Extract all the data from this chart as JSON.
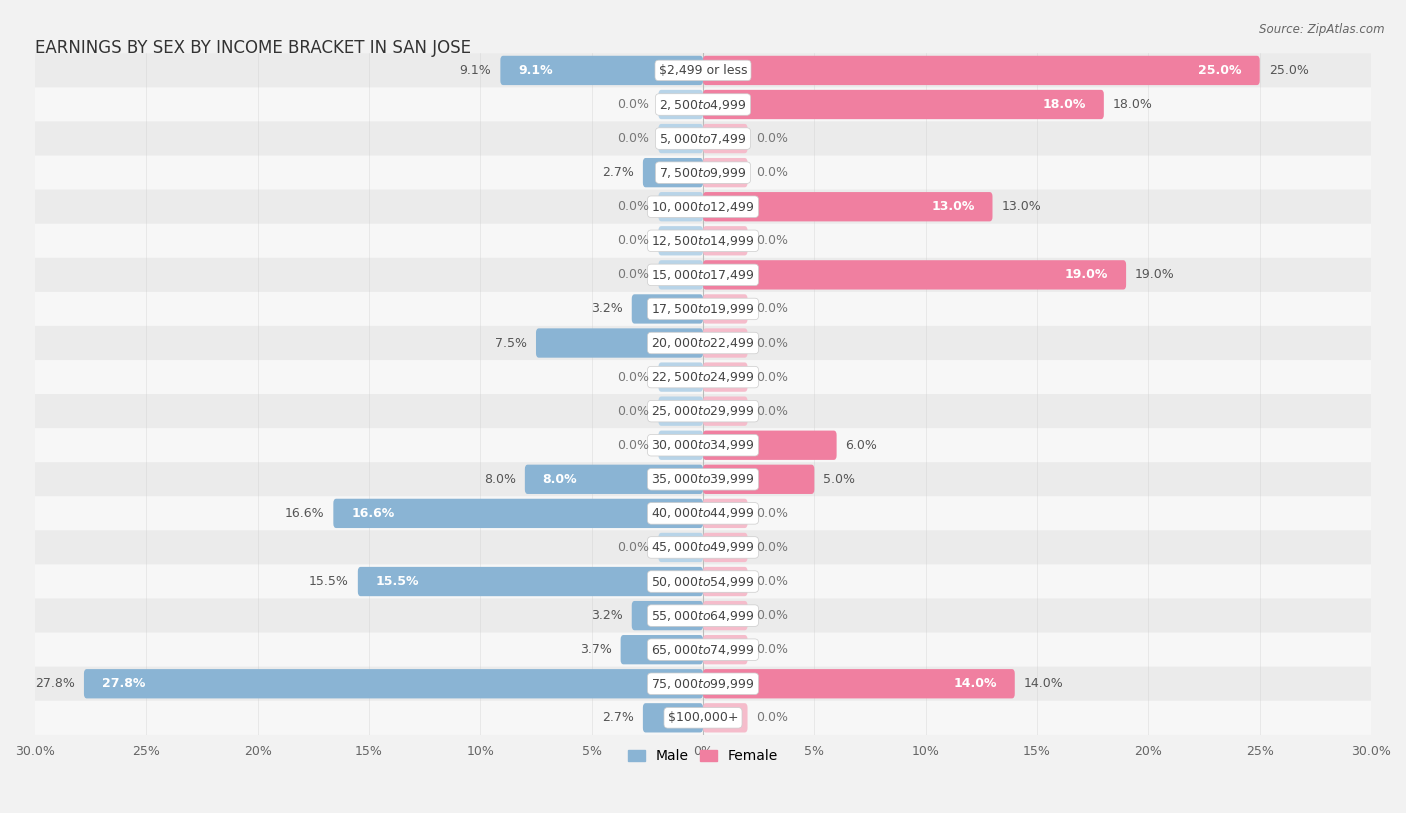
{
  "title": "EARNINGS BY SEX BY INCOME BRACKET IN SAN JOSE",
  "source": "Source: ZipAtlas.com",
  "categories": [
    "$2,499 or less",
    "$2,500 to $4,999",
    "$5,000 to $7,499",
    "$7,500 to $9,999",
    "$10,000 to $12,499",
    "$12,500 to $14,999",
    "$15,000 to $17,499",
    "$17,500 to $19,999",
    "$20,000 to $22,499",
    "$22,500 to $24,999",
    "$25,000 to $29,999",
    "$30,000 to $34,999",
    "$35,000 to $39,999",
    "$40,000 to $44,999",
    "$45,000 to $49,999",
    "$50,000 to $54,999",
    "$55,000 to $64,999",
    "$65,000 to $74,999",
    "$75,000 to $99,999",
    "$100,000+"
  ],
  "male_values": [
    9.1,
    0.0,
    0.0,
    2.7,
    0.0,
    0.0,
    0.0,
    3.2,
    7.5,
    0.0,
    0.0,
    0.0,
    8.0,
    16.6,
    0.0,
    15.5,
    3.2,
    3.7,
    27.8,
    2.7
  ],
  "female_values": [
    25.0,
    18.0,
    0.0,
    0.0,
    13.0,
    0.0,
    19.0,
    0.0,
    0.0,
    0.0,
    0.0,
    6.0,
    5.0,
    0.0,
    0.0,
    0.0,
    0.0,
    0.0,
    14.0,
    0.0
  ],
  "male_color": "#8ab4d4",
  "female_color": "#f07fa0",
  "male_stub_color": "#b8d4e8",
  "female_stub_color": "#f5bccb",
  "bg_color": "#f2f2f2",
  "row_bg_light": "#f7f7f7",
  "row_bg_dark": "#ebebeb",
  "axis_limit": 30.0,
  "stub_value": 2.0,
  "title_fontsize": 12,
  "value_fontsize": 9,
  "category_fontsize": 9,
  "tick_fontsize": 9,
  "legend_fontsize": 10
}
